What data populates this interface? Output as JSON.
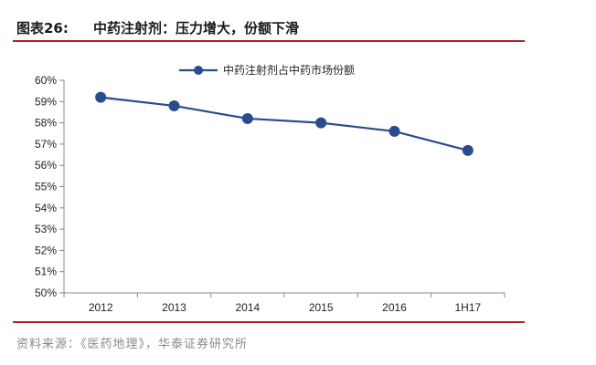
{
  "figure": {
    "label": "图表26:",
    "title": "中药注射剂：压力增大，份额下滑"
  },
  "source": "资料来源：《医药地理》，华泰证券研究所",
  "chart_data": {
    "type": "line",
    "categories": [
      "2012",
      "2013",
      "2014",
      "2015",
      "2016",
      "1H17"
    ],
    "series": [
      {
        "name": "中药注射剂占中药市场份额",
        "values": [
          59.2,
          58.8,
          58.2,
          58.0,
          57.6,
          56.7
        ],
        "color": "#2a4b8d"
      }
    ],
    "y_ticks": [
      "50%",
      "51%",
      "52%",
      "53%",
      "54%",
      "55%",
      "56%",
      "57%",
      "58%",
      "59%",
      "60%"
    ],
    "ylim": [
      50,
      60
    ],
    "legend_position": "top-center",
    "grid": false
  }
}
